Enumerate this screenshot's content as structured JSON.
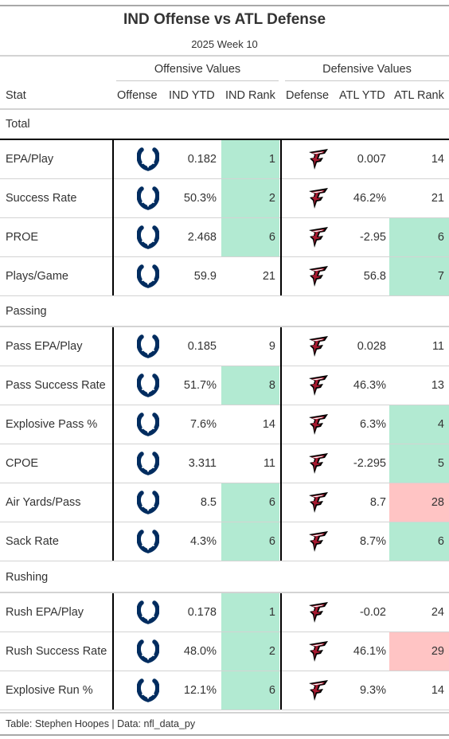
{
  "title": "IND Offense vs ATL Defense",
  "subtitle": "2025 Week 10",
  "spanners": {
    "offense": "Offensive Values",
    "defense": "Defensive Values"
  },
  "columns": {
    "stat": "Stat",
    "offense": "Offense",
    "ind_ytd": "IND YTD",
    "ind_rank": "IND Rank",
    "defense": "Defense",
    "atl_ytd": "ATL YTD",
    "atl_rank": "ATL Rank"
  },
  "colors": {
    "good": "#b2ead2",
    "bad": "#ffc4c4",
    "colts_blue": "#002c5f",
    "falcons_red": "#a71930",
    "falcons_black": "#000000"
  },
  "icons": {
    "offense": "colts-horseshoe-icon",
    "defense": "falcons-logo-icon"
  },
  "groups": [
    {
      "label": "Total",
      "rows": [
        {
          "stat": "EPA/Play",
          "ind_ytd": "0.182",
          "ind_rank": "1",
          "ind_hl": "good",
          "atl_ytd": "0.007",
          "atl_rank": "14",
          "atl_hl": ""
        },
        {
          "stat": "Success Rate",
          "ind_ytd": "50.3%",
          "ind_rank": "2",
          "ind_hl": "good",
          "atl_ytd": "46.2%",
          "atl_rank": "21",
          "atl_hl": ""
        },
        {
          "stat": "PROE",
          "ind_ytd": "2.468",
          "ind_rank": "6",
          "ind_hl": "good",
          "atl_ytd": "-2.95",
          "atl_rank": "6",
          "atl_hl": "good"
        },
        {
          "stat": "Plays/Game",
          "ind_ytd": "59.9",
          "ind_rank": "21",
          "ind_hl": "",
          "atl_ytd": "56.8",
          "atl_rank": "7",
          "atl_hl": "good"
        }
      ]
    },
    {
      "label": "Passing",
      "rows": [
        {
          "stat": "Pass EPA/Play",
          "ind_ytd": "0.185",
          "ind_rank": "9",
          "ind_hl": "",
          "atl_ytd": "0.028",
          "atl_rank": "11",
          "atl_hl": ""
        },
        {
          "stat": "Pass Success Rate",
          "ind_ytd": "51.7%",
          "ind_rank": "8",
          "ind_hl": "good",
          "atl_ytd": "46.3%",
          "atl_rank": "13",
          "atl_hl": ""
        },
        {
          "stat": "Explosive Pass %",
          "ind_ytd": "7.6%",
          "ind_rank": "14",
          "ind_hl": "",
          "atl_ytd": "6.3%",
          "atl_rank": "4",
          "atl_hl": "good"
        },
        {
          "stat": "CPOE",
          "ind_ytd": "3.311",
          "ind_rank": "11",
          "ind_hl": "",
          "atl_ytd": "-2.295",
          "atl_rank": "5",
          "atl_hl": "good"
        },
        {
          "stat": "Air Yards/Pass",
          "ind_ytd": "8.5",
          "ind_rank": "6",
          "ind_hl": "good",
          "atl_ytd": "8.7",
          "atl_rank": "28",
          "atl_hl": "bad"
        },
        {
          "stat": "Sack Rate",
          "ind_ytd": "4.3%",
          "ind_rank": "6",
          "ind_hl": "good",
          "atl_ytd": "8.7%",
          "atl_rank": "6",
          "atl_hl": "good"
        }
      ]
    },
    {
      "label": "Rushing",
      "rows": [
        {
          "stat": "Rush EPA/Play",
          "ind_ytd": "0.178",
          "ind_rank": "1",
          "ind_hl": "good",
          "atl_ytd": "-0.02",
          "atl_rank": "24",
          "atl_hl": ""
        },
        {
          "stat": "Rush Success Rate",
          "ind_ytd": "48.0%",
          "ind_rank": "2",
          "ind_hl": "good",
          "atl_ytd": "46.1%",
          "atl_rank": "29",
          "atl_hl": "bad"
        },
        {
          "stat": "Explosive Run %",
          "ind_ytd": "12.1%",
          "ind_rank": "6",
          "ind_hl": "good",
          "atl_ytd": "9.3%",
          "atl_rank": "14",
          "atl_hl": ""
        }
      ]
    }
  ],
  "footer": "Table: Stephen Hoopes | Data: nfl_data_py"
}
